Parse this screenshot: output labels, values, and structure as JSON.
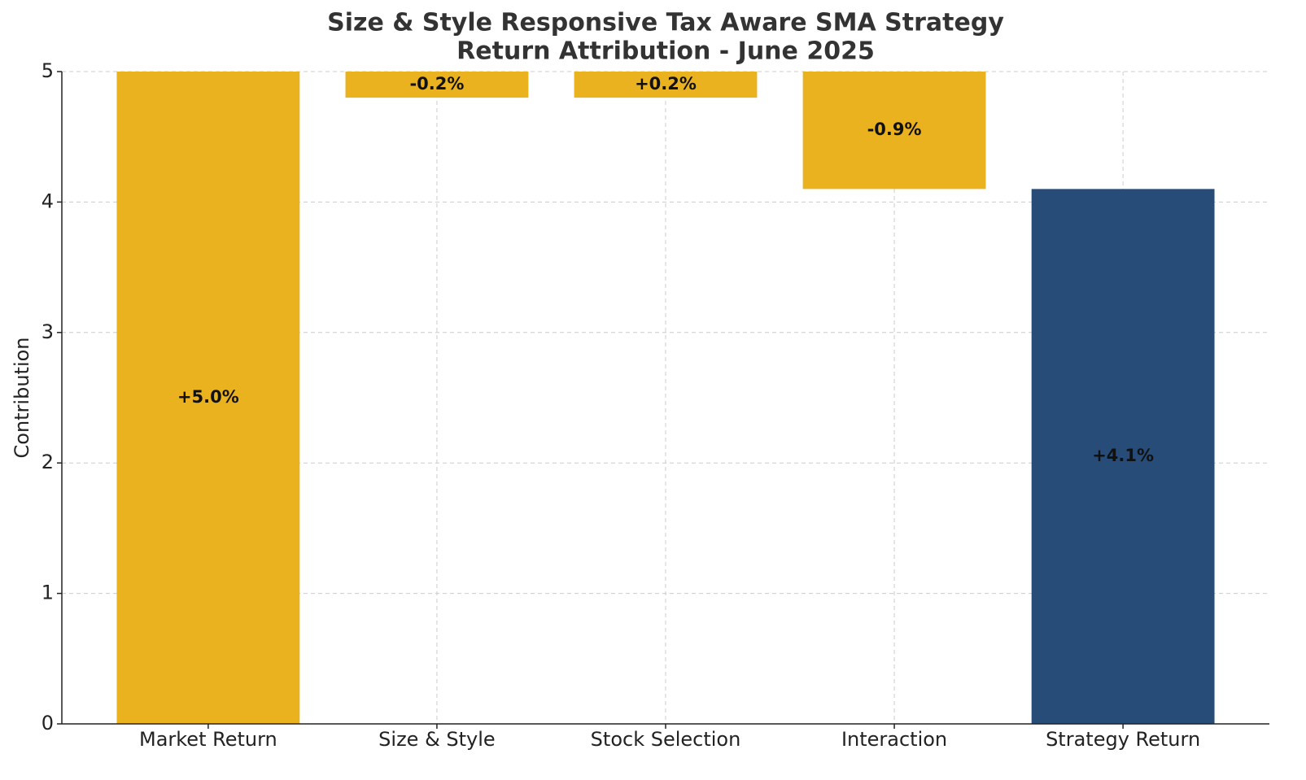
{
  "chart_data": {
    "type": "waterfall",
    "title": "Size & Style Responsive Tax Aware SMA Strategy",
    "subtitle": "Return Attribution - June 2025",
    "ylabel": "Contribution",
    "categories": [
      "Market Return",
      "Size & Style",
      "Stock Selection",
      "Interaction",
      "Strategy Return"
    ],
    "values": [
      5.0,
      -0.2,
      0.2,
      -0.9,
      4.1
    ],
    "value_labels": [
      "+5.0%",
      "-0.2%",
      "+0.2%",
      "-0.9%",
      "+4.1%"
    ],
    "measure": [
      "relative",
      "relative",
      "relative",
      "relative",
      "total"
    ],
    "colors": [
      "#e9b21e",
      "#e9b21e",
      "#e9b21e",
      "#e9b21e",
      "#274c77"
    ],
    "ylim": [
      0,
      5
    ],
    "yticks": [
      0,
      1,
      2,
      3,
      4,
      5
    ],
    "grid": true
  }
}
